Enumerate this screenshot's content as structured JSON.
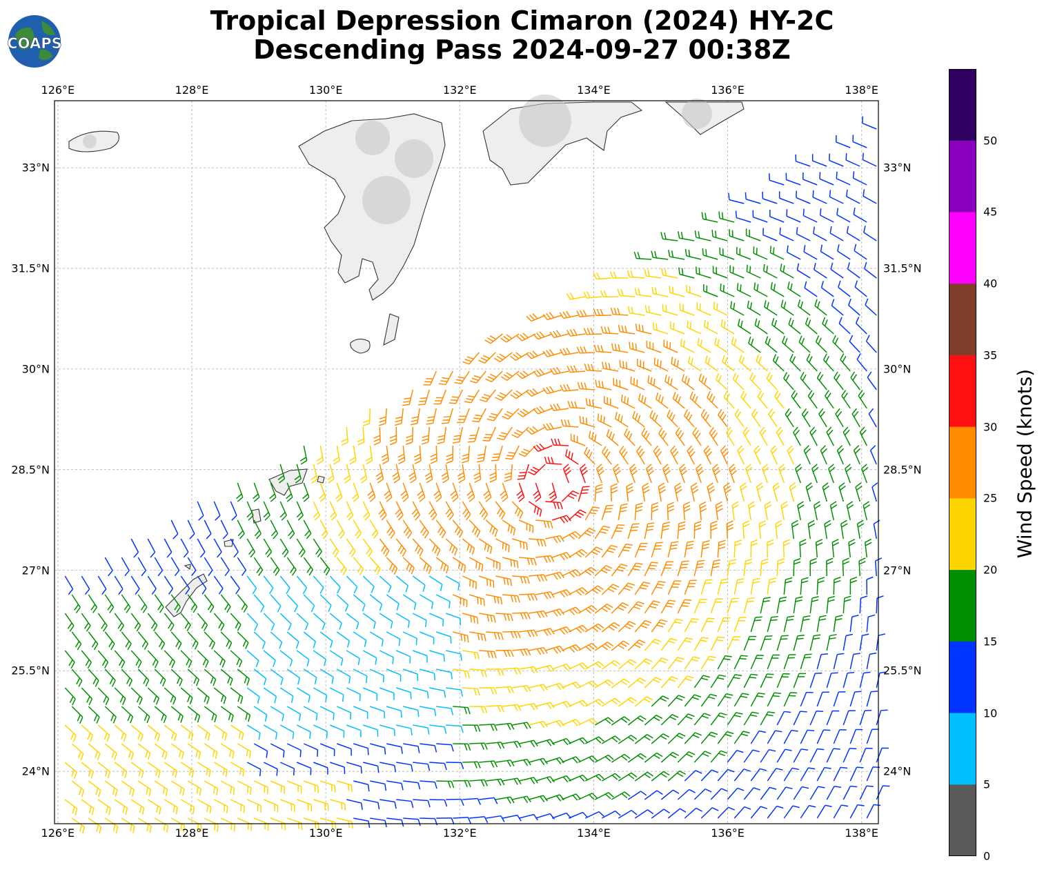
{
  "title_line1": "Tropical Depression Cimaron (2024) HY-2C",
  "title_line2": "Descending Pass 2024-09-27 00:38Z",
  "logo_text": "COAPS",
  "map": {
    "lon_range": [
      126,
      138.3
    ],
    "lat_range": [
      23.2,
      34.0
    ],
    "lon_ticks": [
      "126°E",
      "128°E",
      "130°E",
      "132°E",
      "134°E",
      "136°E",
      "138°E"
    ],
    "lat_ticks": [
      "33°N",
      "31.5°N",
      "30°N",
      "28.5°N",
      "27°N",
      "25.5°N",
      "24°N"
    ],
    "storm_center": {
      "lon": 133.4,
      "lat": 28.3
    },
    "note_colors": {
      "coast": "#333333",
      "grid": "#aaaaaa"
    }
  },
  "colorbar": {
    "title": "Wind Speed (knots)",
    "labels": [
      "0",
      "5",
      "10",
      "15",
      "20",
      "25",
      "30",
      "35",
      "40",
      "45",
      "50"
    ],
    "colors": [
      "#595959",
      "#00bfff",
      "#0033ff",
      "#008f00",
      "#ffd500",
      "#ff8c00",
      "#ff0f0f",
      "#7f3f2a",
      "#ff00ff",
      "#8800bb",
      "#2e0060"
    ]
  }
}
